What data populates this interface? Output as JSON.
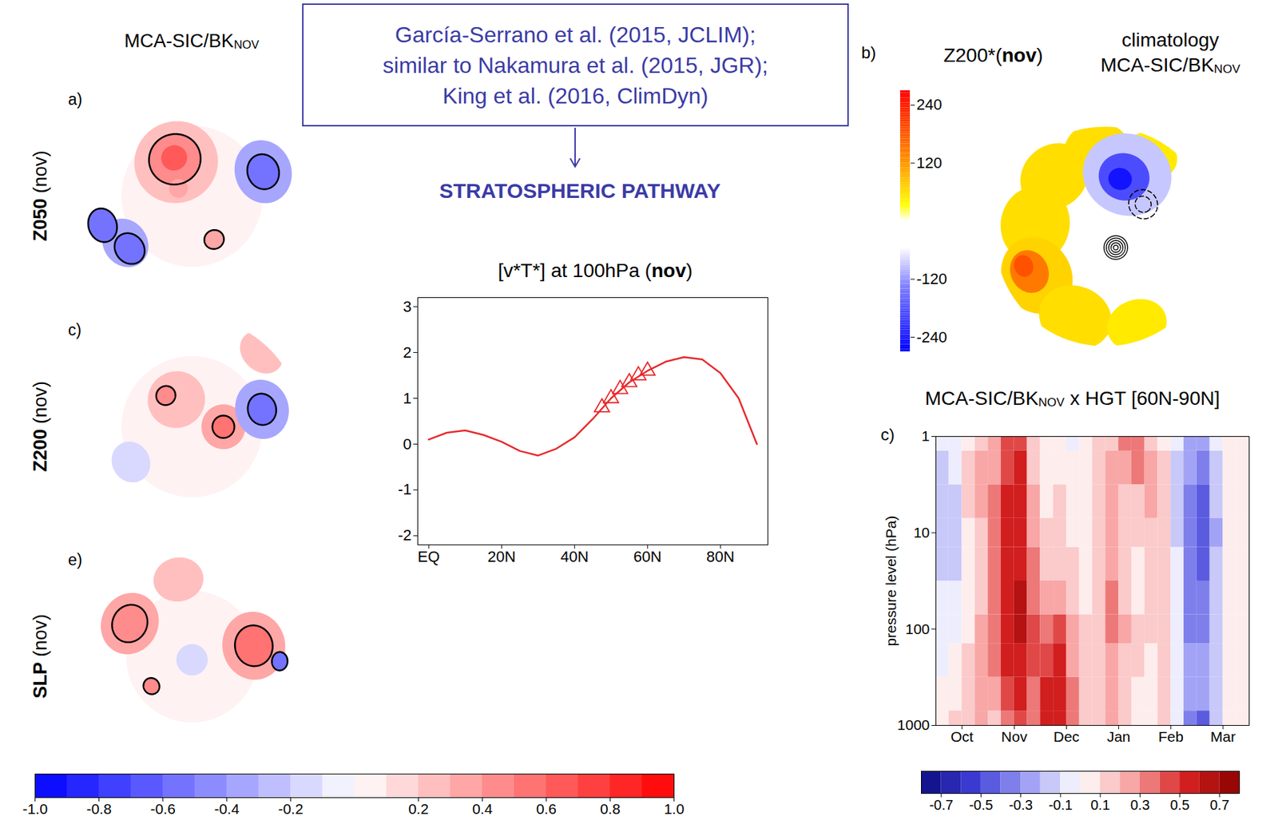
{
  "header": {
    "citation_lines": [
      "García-Serrano et al. (2015, JCLIM);",
      "similar to Nakamura et al. (2015, JGR);",
      "King et al. (2016, ClimDyn)"
    ],
    "pathway": "STRATOSPHERIC PATHWAY"
  },
  "left_maps": {
    "title": {
      "text": "MCA-SIC/BK",
      "sub": "NOV"
    },
    "panels": [
      {
        "letter": "a)",
        "label": "Z050 (nov)",
        "base": -0.25,
        "lat_min": 20,
        "blobs": [
          {
            "lon": 0,
            "lat": 90,
            "r": 45,
            "value": 0
          },
          {
            "lon": -155,
            "lat": 66,
            "r": 26,
            "value": 0.25
          },
          {
            "lon": -155,
            "lat": 64,
            "r": 16,
            "value": 0.45,
            "sig": true
          },
          {
            "lon": -155,
            "lat": 63,
            "r": 8,
            "value": 0.6
          },
          {
            "lon": -120,
            "lat": 80,
            "r": 6,
            "value": 0.3
          },
          {
            "lon": 109,
            "lat": 42,
            "r": 18,
            "value": -0.35
          },
          {
            "lon": 109,
            "lat": 42,
            "r": 10,
            "value": -0.55,
            "sig": true
          },
          {
            "lon": -55,
            "lat": 38,
            "r": 14,
            "value": -0.35
          },
          {
            "lon": -50,
            "lat": 38,
            "r": 9,
            "value": -0.55,
            "sig": true
          },
          {
            "lon": -72,
            "lat": 30,
            "r": 9,
            "value": -0.55,
            "sig": true
          },
          {
            "lon": 27,
            "lat": 59,
            "r": 6,
            "value": 0.35,
            "sig": true
          }
        ]
      },
      {
        "letter": "c)",
        "label": "Z200 (nov)",
        "base": -0.2,
        "lat_min": 20,
        "blobs": [
          {
            "lon": 0,
            "lat": 90,
            "r": 45,
            "value": 0
          },
          {
            "lon": -150,
            "lat": 70,
            "r": 18,
            "value": 0.25
          },
          {
            "lon": -140,
            "lat": 64,
            "r": 6,
            "value": 0.4,
            "sig": true
          },
          {
            "lon": 90,
            "lat": 70,
            "r": 14,
            "value": 0.3
          },
          {
            "lon": 90,
            "lat": 70,
            "r": 7,
            "value": 0.55,
            "sig": true
          },
          {
            "lon": 104,
            "lat": 44,
            "r": 17,
            "value": -0.35
          },
          {
            "lon": 104,
            "lat": 44,
            "r": 9,
            "value": -0.6,
            "sig": true
          },
          {
            "lon": 137,
            "lat": 25,
            "r": 12,
            "value": 0.2
          },
          {
            "lon": -60,
            "lat": 45,
            "r": 12,
            "value": -0.15
          }
        ]
      },
      {
        "letter": "e)",
        "label": "SLP (nov)",
        "base": -0.15,
        "lat_min": 20,
        "blobs": [
          {
            "lon": 0,
            "lat": 90,
            "r": 42,
            "value": 0
          },
          {
            "lon": 100,
            "lat": 50,
            "r": 20,
            "value": 0.3
          },
          {
            "lon": 100,
            "lat": 50,
            "r": 12,
            "value": 0.5,
            "sig": true
          },
          {
            "lon": -118,
            "lat": 45,
            "r": 18,
            "value": 0.3
          },
          {
            "lon": -118,
            "lat": 45,
            "r": 11,
            "value": 0.45,
            "sig": true
          },
          {
            "lon": -54,
            "lat": 58,
            "r": 5,
            "value": 0.4,
            "sig": true
          },
          {
            "lon": 87,
            "lat": 34,
            "r": 5,
            "value": -0.6,
            "sig": true
          },
          {
            "lon": 0,
            "lat": 88,
            "r": 10,
            "value": -0.2
          },
          {
            "lon": -170,
            "lat": 40,
            "r": 14,
            "value": 0.2
          }
        ]
      }
    ],
    "colorbar": {
      "bins": [
        -1,
        -0.9,
        -0.8,
        -0.7,
        -0.6,
        -0.5,
        -0.4,
        -0.3,
        -0.2,
        -0.1,
        0,
        0.1,
        0.2,
        0.3,
        0.4,
        0.5,
        0.6,
        0.7,
        0.8,
        0.9,
        1
      ],
      "ticks": [
        {
          "value": -1,
          "label": "-1.0"
        },
        -0.8,
        -0.6,
        -0.4,
        -0.2,
        0.2,
        0.4,
        0.6,
        0.8,
        {
          "value": 1,
          "label": "1.0"
        }
      ]
    }
  },
  "chart_data": {
    "type": "line",
    "title": "[v*T*] at 100hPa (nov)",
    "x": [
      0,
      5,
      10,
      15,
      20,
      25,
      30,
      35,
      40,
      45,
      50,
      55,
      60,
      65,
      70,
      75,
      80,
      85,
      90
    ],
    "series": [
      {
        "type": "line",
        "color": "#e8282a",
        "values": [
          0.1,
          0.25,
          0.3,
          0.2,
          0.05,
          -0.15,
          -0.25,
          -0.1,
          0.15,
          0.55,
          1.0,
          1.35,
          1.6,
          1.8,
          1.9,
          1.85,
          1.55,
          1.0,
          0.0
        ]
      },
      {
        "type": "scatter",
        "marker": "triangle",
        "color": "#e8282a",
        "x": [
          47.5,
          50,
          52.5,
          55,
          57.5,
          60
        ],
        "values": [
          0.8,
          1.0,
          1.2,
          1.35,
          1.5,
          1.6
        ]
      }
    ],
    "xlim": [
      -3,
      93
    ],
    "xticks": [
      {
        "value": 0,
        "label": "EQ"
      },
      {
        "value": 20,
        "label": "20N"
      },
      {
        "value": 40,
        "label": "40N"
      },
      {
        "value": 60,
        "label": "60N"
      },
      {
        "value": 80,
        "label": "80N"
      }
    ],
    "ylim": [
      -2.2,
      3.2
    ],
    "yticks": [
      -2,
      -1,
      0,
      1,
      2,
      3
    ]
  },
  "map_b": {
    "letter": "b)",
    "title": "Z200*(nov)",
    "caption": {
      "line1": "climatology",
      "line2": {
        "text": "MCA-SIC/BK",
        "sub": "NOV"
      }
    },
    "base": 0,
    "lat_min": 20,
    "blobs": [
      {
        "lon": -100,
        "lat": 45,
        "r": 22,
        "value": 60
      },
      {
        "lon": -140,
        "lat": 40,
        "r": 20,
        "value": 60
      },
      {
        "lon": -175,
        "lat": 35,
        "r": 18,
        "value": 60
      },
      {
        "lon": 150,
        "lat": 30,
        "r": 14,
        "value": 50
      },
      {
        "lon": -60,
        "lat": 40,
        "r": 22,
        "value": 70
      },
      {
        "lon": -20,
        "lat": 35,
        "r": 20,
        "value": 60
      },
      {
        "lon": 20,
        "lat": 30,
        "r": 16,
        "value": 50
      },
      {
        "lon": -65,
        "lat": 37,
        "r": 12,
        "value": 150
      },
      {
        "lon": -70,
        "lat": 35,
        "r": 6,
        "value": 190
      },
      {
        "lon": 160,
        "lat": 48,
        "r": 26,
        "value": -90
      },
      {
        "lon": 162,
        "lat": 50,
        "r": 15,
        "value": -190
      },
      {
        "lon": 165,
        "lat": 52,
        "r": 7,
        "value": -250
      }
    ],
    "contours": [
      {
        "lon": 45,
        "lat": 80,
        "radii": [
          1.5,
          3,
          4.5,
          6,
          7.5
        ],
        "line_style": "solid"
      },
      {
        "lon": 130,
        "lat": 58,
        "radii": [
          5,
          9
        ],
        "line_style": "dashed"
      }
    ],
    "colorbar": {
      "lim": [
        -270,
        270
      ],
      "ticks": [
        -240,
        -120,
        120,
        240
      ]
    }
  },
  "panel_c": {
    "letter": "c)",
    "title": {
      "text": "MCA-SIC/BK",
      "sub": "NOV",
      "after": " x HGT [60N-90N]"
    },
    "x": [
      0.125,
      0.375,
      0.625,
      0.875,
      1.125,
      1.375,
      1.625,
      1.875,
      2.125,
      2.375,
      2.625,
      2.875,
      3.125,
      3.375,
      3.625,
      3.875,
      4.125,
      4.375,
      4.625,
      4.875,
      5.125,
      5.375,
      5.625,
      5.875
    ],
    "xlim": [
      0,
      6
    ],
    "xticks": [
      {
        "value": 0.5,
        "label": "Oct"
      },
      {
        "value": 1.5,
        "label": "Nov"
      },
      {
        "value": 2.5,
        "label": "Dec"
      },
      {
        "value": 3.5,
        "label": "Jan"
      },
      {
        "value": 4.5,
        "label": "Feb"
      },
      {
        "value": 5.5,
        "label": "Mar"
      }
    ],
    "levels": [
      1000,
      500,
      200,
      100,
      50,
      20,
      10,
      5,
      2,
      1
    ],
    "ylim": [
      1000,
      1
    ],
    "yticks": [
      1,
      10,
      100,
      1000
    ],
    "log": "y",
    "ylabel": "pressure level (hPa)",
    "z": [
      [
        0.05,
        0.0,
        -0.05,
        -0.05,
        -0.1,
        -0.15,
        -0.2,
        -0.2,
        -0.15,
        -0.1
      ],
      [
        0.1,
        0.05,
        0.0,
        -0.05,
        -0.1,
        -0.15,
        -0.2,
        -0.15,
        -0.1,
        -0.05
      ],
      [
        0.15,
        0.15,
        0.1,
        0.05,
        0.0,
        0.0,
        0.05,
        0.1,
        0.1,
        0.05
      ],
      [
        0.2,
        0.2,
        0.2,
        0.2,
        0.15,
        0.15,
        0.15,
        0.2,
        0.2,
        0.15
      ],
      [
        0.15,
        0.25,
        0.3,
        0.35,
        0.35,
        0.3,
        0.3,
        0.3,
        0.25,
        0.2
      ],
      [
        0.35,
        0.45,
        0.5,
        0.5,
        0.55,
        0.55,
        0.55,
        0.5,
        0.45,
        0.4
      ],
      [
        0.45,
        0.5,
        0.55,
        0.6,
        0.6,
        0.55,
        0.55,
        0.5,
        0.5,
        0.45
      ],
      [
        0.3,
        0.35,
        0.4,
        0.4,
        0.35,
        0.3,
        0.25,
        0.2,
        0.15,
        0.1
      ],
      [
        0.5,
        0.5,
        0.45,
        0.35,
        0.2,
        0.15,
        0.1,
        0.05,
        0.05,
        0.0
      ],
      [
        0.55,
        0.55,
        0.5,
        0.4,
        0.25,
        0.15,
        0.1,
        0.1,
        0.05,
        0.0
      ],
      [
        0.3,
        0.3,
        0.25,
        0.2,
        0.15,
        0.1,
        0.05,
        0.0,
        0.0,
        -0.05
      ],
      [
        0.15,
        0.1,
        0.1,
        0.1,
        0.05,
        0.05,
        0.05,
        0.0,
        0.0,
        0.0
      ],
      [
        0.1,
        0.1,
        0.1,
        0.15,
        0.15,
        0.15,
        0.1,
        0.1,
        0.1,
        0.1
      ],
      [
        0.2,
        0.2,
        0.25,
        0.35,
        0.3,
        0.25,
        0.2,
        0.2,
        0.2,
        0.15
      ],
      [
        0.15,
        0.15,
        0.15,
        0.2,
        0.15,
        0.1,
        0.1,
        0.15,
        0.25,
        0.3
      ],
      [
        0.05,
        0.05,
        0.1,
        0.1,
        0.05,
        0.05,
        0.1,
        0.15,
        0.3,
        0.3
      ],
      [
        0.0,
        0.05,
        0.05,
        0.1,
        0.1,
        0.1,
        0.15,
        0.2,
        0.2,
        0.15
      ],
      [
        0.1,
        0.1,
        0.1,
        0.15,
        0.15,
        0.15,
        0.1,
        0.1,
        0.1,
        0.05
      ],
      [
        -0.05,
        -0.05,
        -0.1,
        -0.1,
        -0.1,
        -0.1,
        -0.15,
        -0.15,
        -0.15,
        -0.1
      ],
      [
        -0.35,
        -0.3,
        -0.3,
        -0.35,
        -0.35,
        -0.4,
        -0.4,
        -0.35,
        -0.3,
        -0.25
      ],
      [
        -0.45,
        -0.3,
        -0.3,
        -0.35,
        -0.4,
        -0.45,
        -0.5,
        -0.45,
        -0.35,
        -0.3
      ],
      [
        -0.2,
        -0.15,
        -0.15,
        -0.2,
        -0.2,
        -0.2,
        -0.25,
        -0.2,
        -0.15,
        -0.1
      ],
      [
        0.0,
        0.0,
        0.05,
        0.05,
        0.05,
        0.0,
        0.0,
        0.0,
        0.05,
        0.05
      ],
      [
        0.05,
        0.05,
        0.05,
        0.05,
        0.05,
        0.05,
        0.0,
        0.0,
        0.0,
        0.0
      ]
    ],
    "colorbar": {
      "bins": [
        -0.8,
        -0.7,
        -0.6,
        -0.5,
        -0.4,
        -0.3,
        -0.2,
        -0.1,
        0,
        0.1,
        0.2,
        0.3,
        0.4,
        0.5,
        0.6,
        0.7,
        0.8
      ],
      "ticks": [
        -0.7,
        -0.5,
        -0.3,
        -0.1,
        0.1,
        0.3,
        0.5,
        0.7
      ]
    }
  }
}
